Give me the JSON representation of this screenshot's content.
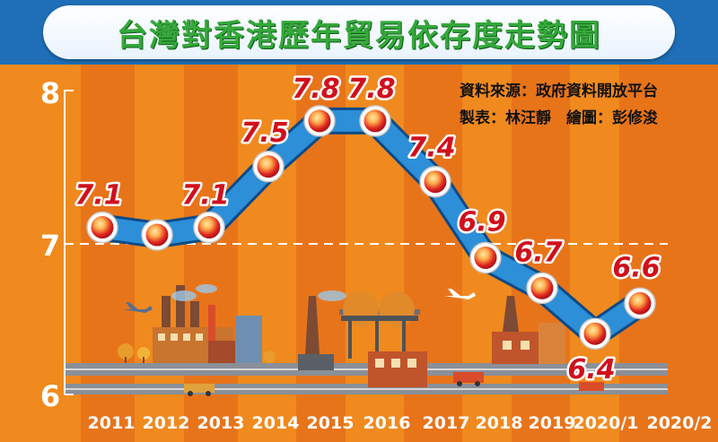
{
  "title": "台灣對香港歷年貿易依存度走勢圖",
  "source_note": "資料來源：政府資料開放平台",
  "credits_note": "製表：林汪靜　繪圖：彭修浚",
  "colors": {
    "frame": "#1f6fb8",
    "line": "#2c8fd8",
    "label": "#d0101c",
    "axis": "#ffffff"
  },
  "chart_data": {
    "type": "line",
    "categories": [
      "2011",
      "2012",
      "2013",
      "2014",
      "2015",
      "2016",
      "2017",
      "2018",
      "2019",
      "2020/1",
      "2020/2"
    ],
    "series": [
      {
        "values": [
          7.1,
          7.05,
          7.1,
          7.5,
          7.8,
          7.8,
          7.4,
          6.9,
          6.7,
          6.4,
          6.6
        ]
      }
    ],
    "data_labels": [
      "7.1",
      null,
      "7.1",
      "7.5",
      "7.8",
      "7.8",
      "7.4",
      "6.9",
      "6.7",
      "6.4",
      "6.6"
    ],
    "y_ticks": [
      "6",
      "7",
      "8"
    ],
    "ylim": [
      6,
      8
    ],
    "reference_line": 7,
    "grid": false,
    "xlabel": "",
    "ylabel": ""
  }
}
